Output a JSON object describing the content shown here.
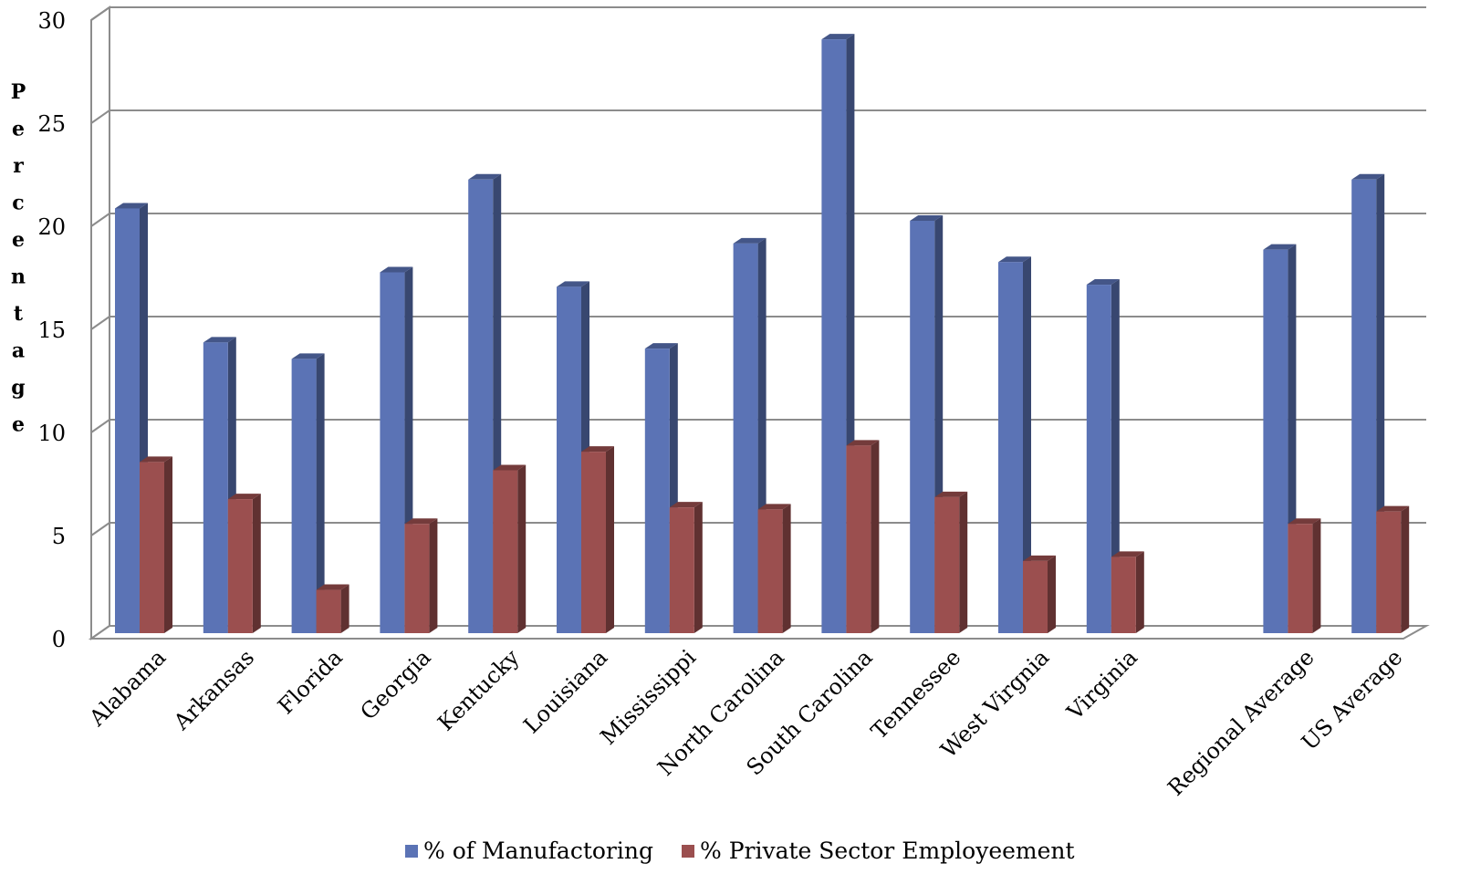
{
  "chart_data": {
    "type": "bar",
    "title": "",
    "xlabel": "",
    "ylabel": "Percentage",
    "ylim": [
      0,
      30
    ],
    "yticks": [
      0,
      5,
      10,
      15,
      20,
      25,
      30
    ],
    "grid": true,
    "legend_position": "bottom",
    "categories": [
      "Alabama",
      "Arkansas",
      "Florida",
      "Georgia",
      "Kentucky",
      "Louisiana",
      "Mississippi",
      "North Carolina",
      "South Carolina",
      "Tennessee",
      "West Virgnia",
      "Virginia",
      "",
      "Regional Average",
      "US Average"
    ],
    "series": [
      {
        "name": "% of Manufactoring",
        "color": "#5b73b5",
        "values": [
          20.6,
          14.1,
          13.3,
          17.5,
          22.0,
          16.8,
          13.8,
          18.9,
          28.8,
          20.0,
          18.0,
          16.9,
          null,
          18.6,
          22.0
        ]
      },
      {
        "name": "% Private Sector Employeement",
        "color": "#9b4f4f",
        "values": [
          8.3,
          6.5,
          2.1,
          5.3,
          7.9,
          8.8,
          6.1,
          6.0,
          9.1,
          6.6,
          3.5,
          3.7,
          null,
          5.3,
          5.9
        ]
      }
    ]
  }
}
